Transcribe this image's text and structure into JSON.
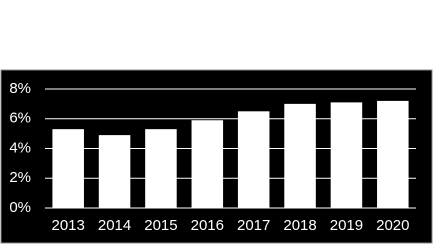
{
  "chart_data": {
    "type": "bar",
    "categories": [
      "2013",
      "2014",
      "2015",
      "2016",
      "2017",
      "2018",
      "2019",
      "2020"
    ],
    "values": [
      5.3,
      4.9,
      5.3,
      5.9,
      6.5,
      7.0,
      7.1,
      7.2
    ],
    "color": "#ffffff",
    "ylim": [
      0,
      8
    ],
    "yticks": [
      {
        "value": 0,
        "label": "0%"
      },
      {
        "value": 2,
        "label": "2%"
      },
      {
        "value": 4,
        "label": "4%"
      },
      {
        "value": 6,
        "label": "6%"
      },
      {
        "value": 8,
        "label": "8%"
      }
    ],
    "grid": true
  }
}
